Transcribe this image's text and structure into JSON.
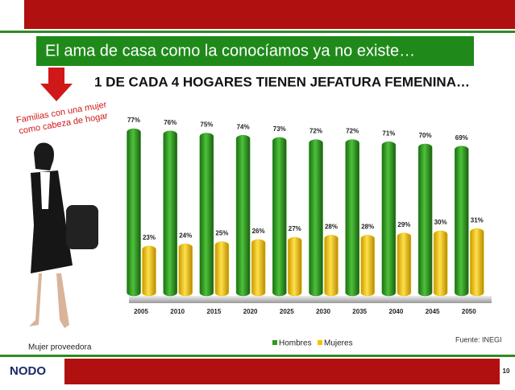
{
  "slide": {
    "title": "El ama de casa como la conocíamos ya no existe…",
    "annotation": [
      "Familias con una mujer",
      "como cabeza de hogar"
    ],
    "caption": "Mujer proveedora",
    "source": "Fuente: INEGI",
    "logo": "NODO",
    "page_number": "10"
  },
  "chart_data": {
    "type": "bar",
    "title": "1 DE CADA 4 HOGARES TIENEN JEFATURA FEMENINA…",
    "categories": [
      "2005",
      "2010",
      "2015",
      "2020",
      "2025",
      "2030",
      "2035",
      "2040",
      "2045",
      "2050"
    ],
    "series": [
      {
        "name": "Hombres",
        "color": "#2e9a1e",
        "values": [
          77,
          76,
          75,
          74,
          73,
          72,
          72,
          71,
          70,
          69
        ],
        "value_labels": [
          "77%",
          "76%",
          "75%",
          "74%",
          "73%",
          "72%",
          "72%",
          "71%",
          "70%",
          "69%"
        ]
      },
      {
        "name": "Mujeres",
        "color": "#f2c200",
        "values": [
          23,
          24,
          25,
          26,
          27,
          28,
          28,
          29,
          30,
          31
        ],
        "value_labels": [
          "23%",
          "24%",
          "25%",
          "26%",
          "27%",
          "28%",
          "28%",
          "29%",
          "30%",
          "31%"
        ]
      }
    ],
    "legend": "bottom"
  }
}
